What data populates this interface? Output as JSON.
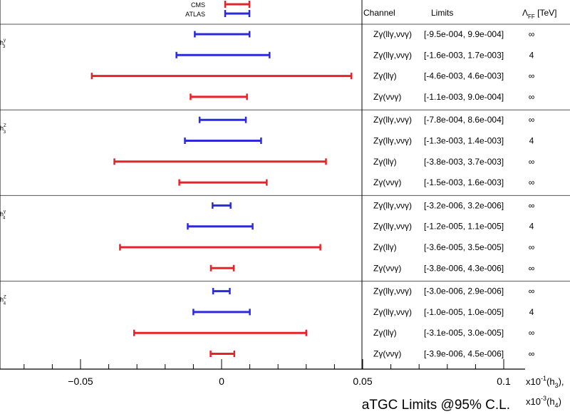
{
  "chart_data": {
    "type": "errorbar-interval",
    "legend": [
      {
        "name": "CMS",
        "color": "#e8222b"
      },
      {
        "name": "ATLAS",
        "color": "#2b2bdd"
      }
    ],
    "headers": {
      "channel": "Channel",
      "limits": "Limits",
      "lambda_sym": "Λ",
      "lambda_sub": "FF",
      "lambda_unit": " [TeV]"
    },
    "groups": [
      {
        "label": {
          "base": "h",
          "sup": "γ",
          "sub": "3"
        },
        "rows": [
          {
            "experiment": "ATLAS",
            "channel": "Zγ(llγ,ννγ)",
            "limits": "[-9.5e-004, 9.9e-004]",
            "lambda": "∞",
            "low": -0.0095,
            "high": 0.0099
          },
          {
            "experiment": "ATLAS",
            "channel": "Zγ(llγ,ννγ)",
            "limits": "[-1.6e-003, 1.7e-003]",
            "lambda": "4",
            "low": -0.016,
            "high": 0.017
          },
          {
            "experiment": "CMS",
            "channel": "Zγ(llγ)",
            "limits": "[-4.6e-003, 4.6e-003]",
            "lambda": "∞",
            "low": -0.046,
            "high": 0.046
          },
          {
            "experiment": "CMS",
            "channel": "Zγ(ννγ)",
            "limits": "[-1.1e-003, 9.0e-004]",
            "lambda": "∞",
            "low": -0.011,
            "high": 0.009
          }
        ]
      },
      {
        "label": {
          "base": "h",
          "sup": "Z",
          "sub": "3"
        },
        "rows": [
          {
            "experiment": "ATLAS",
            "channel": "Zγ(llγ,ννγ)",
            "limits": "[-7.8e-004, 8.6e-004]",
            "lambda": "∞",
            "low": -0.0078,
            "high": 0.0086
          },
          {
            "experiment": "ATLAS",
            "channel": "Zγ(llγ,ννγ)",
            "limits": "[-1.3e-003, 1.4e-003]",
            "lambda": "4",
            "low": -0.013,
            "high": 0.014
          },
          {
            "experiment": "CMS",
            "channel": "Zγ(llγ)",
            "limits": "[-3.8e-003, 3.7e-003]",
            "lambda": "∞",
            "low": -0.038,
            "high": 0.037
          },
          {
            "experiment": "CMS",
            "channel": "Zγ(ννγ)",
            "limits": "[-1.5e-003, 1.6e-003]",
            "lambda": "∞",
            "low": -0.015,
            "high": 0.016
          }
        ]
      },
      {
        "label": {
          "base": "h",
          "sup": "γ",
          "sub": "4"
        },
        "rows": [
          {
            "experiment": "ATLAS",
            "channel": "Zγ(llγ,ννγ)",
            "limits": "[-3.2e-006, 3.2e-006]",
            "lambda": "∞",
            "low": -0.0032,
            "high": 0.0032
          },
          {
            "experiment": "ATLAS",
            "channel": "Zγ(llγ,ννγ)",
            "limits": "[-1.2e-005, 1.1e-005]",
            "lambda": "4",
            "low": -0.012,
            "high": 0.011
          },
          {
            "experiment": "CMS",
            "channel": "Zγ(llγ)",
            "limits": "[-3.6e-005, 3.5e-005]",
            "lambda": "∞",
            "low": -0.036,
            "high": 0.035
          },
          {
            "experiment": "CMS",
            "channel": "Zγ(ννγ)",
            "limits": "[-3.8e-006, 4.3e-006]",
            "lambda": "∞",
            "low": -0.0038,
            "high": 0.0043
          }
        ]
      },
      {
        "label": {
          "base": "h",
          "sup": "Z",
          "sub": "4"
        },
        "rows": [
          {
            "experiment": "ATLAS",
            "channel": "Zγ(llγ,ννγ)",
            "limits": "[-3.0e-006, 2.9e-006]",
            "lambda": "∞",
            "low": -0.003,
            "high": 0.0029
          },
          {
            "experiment": "ATLAS",
            "channel": "Zγ(llγ,ννγ)",
            "limits": "[-1.0e-005, 1.0e-005]",
            "lambda": "4",
            "low": -0.01,
            "high": 0.01
          },
          {
            "experiment": "CMS",
            "channel": "Zγ(llγ)",
            "limits": "[-3.1e-005, 3.0e-005]",
            "lambda": "∞",
            "low": -0.031,
            "high": 0.03
          },
          {
            "experiment": "CMS",
            "channel": "Zγ(ννγ)",
            "limits": "[-3.9e-006, 4.5e-006]",
            "lambda": "∞",
            "low": -0.0039,
            "high": 0.0045
          }
        ]
      }
    ],
    "x_axis": {
      "range": [
        -0.07,
        0.105
      ],
      "major_ticks": [
        -0.05,
        0,
        0.05,
        0.1
      ],
      "tick_labels": [
        "−0.05",
        "0",
        "0.05",
        "0.1"
      ],
      "minor_step": 0.01,
      "unit_labels": [
        {
          "prefix": "x10",
          "exp": "-1",
          "suffix": "(h",
          "sub": "3",
          "close": "),"
        },
        {
          "prefix": "x10",
          "exp": "-3",
          "suffix": "(h",
          "sub": "4",
          "close": ")"
        }
      ]
    },
    "xlabel": "aTGC Limits @95% C.L."
  }
}
